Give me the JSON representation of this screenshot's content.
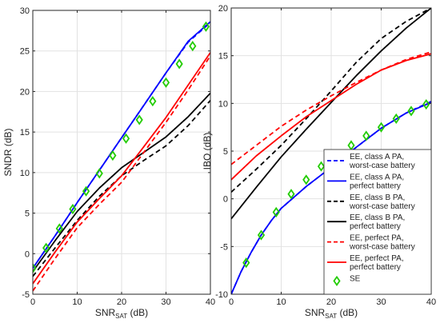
{
  "chart_data": [
    {
      "type": "line",
      "xlabel": {
        "main": "SNR",
        "sub": "SAT",
        "unit": " (dB)"
      },
      "ylabel": "SNDR (dB)",
      "xlim": [
        0,
        40
      ],
      "ylim": [
        -5,
        30
      ],
      "x_ticks": [
        0,
        10,
        20,
        30,
        40
      ],
      "y_ticks": [
        -5,
        0,
        5,
        10,
        15,
        20,
        25,
        30
      ],
      "grid": true,
      "series": [
        {
          "key": "ea_wc",
          "color": "#0000ff",
          "dash": "dashed",
          "x": [
            0,
            5,
            10,
            15,
            20,
            25,
            30,
            35,
            40
          ],
          "y": [
            -1.8,
            2.2,
            6.3,
            10.3,
            14.3,
            18.3,
            22.3,
            26.1,
            28.5
          ]
        },
        {
          "key": "ea_pb",
          "color": "#0000ff",
          "dash": "solid",
          "x": [
            0,
            5,
            10,
            15,
            20,
            25,
            30,
            35,
            40
          ],
          "y": [
            -1.8,
            2.2,
            6.3,
            10.3,
            14.3,
            18.3,
            22.3,
            26.2,
            28.6
          ]
        },
        {
          "key": "eb_wc",
          "color": "#000000",
          "dash": "dashed",
          "x": [
            0,
            5,
            10,
            15,
            20,
            25,
            30,
            35,
            40
          ],
          "y": [
            -2.8,
            0.7,
            4.1,
            7.1,
            9.6,
            11.5,
            13.3,
            15.8,
            18.9
          ]
        },
        {
          "key": "eb_pb",
          "color": "#000000",
          "dash": "solid",
          "x": [
            0,
            5,
            10,
            15,
            20,
            25,
            30,
            35,
            40
          ],
          "y": [
            -2.2,
            1.6,
            5.2,
            8.1,
            10.6,
            12.5,
            14.4,
            16.9,
            19.8
          ]
        },
        {
          "key": "ep_wc",
          "color": "#ff0000",
          "dash": "dashed",
          "x": [
            0,
            5,
            10,
            15,
            20,
            25,
            30,
            35,
            40
          ],
          "y": [
            -4.6,
            -0.6,
            3.2,
            6.1,
            8.8,
            12.5,
            16.2,
            20.2,
            24.4
          ]
        },
        {
          "key": "ep_pb",
          "color": "#ff0000",
          "dash": "solid",
          "x": [
            0,
            5,
            10,
            15,
            20,
            25,
            30,
            35,
            40
          ],
          "y": [
            -3.7,
            0.2,
            3.9,
            6.8,
            9.6,
            13.2,
            16.8,
            20.8,
            24.8
          ]
        },
        {
          "key": "se",
          "color": "#22cc00",
          "marker": "diamond",
          "x": [
            0,
            3,
            6,
            9,
            12,
            15,
            18,
            21,
            24,
            27,
            30,
            33,
            36,
            39
          ],
          "y": [
            -1.8,
            0.7,
            3.1,
            5.5,
            7.7,
            9.9,
            12.1,
            14.2,
            16.5,
            18.8,
            21.1,
            23.4,
            25.6,
            28.0
          ]
        }
      ]
    },
    {
      "type": "line",
      "xlabel": {
        "main": "SNR",
        "sub": "SAT",
        "unit": " (dB)"
      },
      "ylabel": "IBO (dB)",
      "xlim": [
        0,
        40
      ],
      "ylim": [
        -10,
        20
      ],
      "x_ticks": [
        0,
        10,
        20,
        30,
        40
      ],
      "y_ticks": [
        -10,
        -5,
        0,
        5,
        10,
        15,
        20
      ],
      "grid": true,
      "series": [
        {
          "key": "ea_wc",
          "color": "#0000ff",
          "dash": "dashed",
          "x": [
            0,
            2,
            4,
            6,
            8,
            10,
            15,
            20,
            25,
            30,
            35,
            40
          ],
          "y": [
            -10,
            -7.6,
            -5.6,
            -3.8,
            -2.3,
            -1.0,
            1.3,
            3.3,
            5.4,
            7.4,
            9.0,
            10.2
          ]
        },
        {
          "key": "ea_pb",
          "color": "#0000ff",
          "dash": "solid",
          "x": [
            0,
            2,
            4,
            6,
            8,
            10,
            15,
            20,
            25,
            30,
            35,
            40
          ],
          "y": [
            -10,
            -7.6,
            -5.6,
            -3.8,
            -2.3,
            -1.0,
            1.3,
            3.3,
            5.4,
            7.4,
            9.0,
            10.1
          ]
        },
        {
          "key": "eb_wc",
          "color": "#000000",
          "dash": "dashed",
          "x": [
            0,
            5,
            10,
            15,
            20,
            25,
            30,
            35,
            40
          ],
          "y": [
            0.7,
            3.1,
            5.6,
            8.4,
            11.3,
            14.3,
            16.8,
            18.6,
            20.0
          ]
        },
        {
          "key": "eb_pb",
          "color": "#000000",
          "dash": "solid",
          "x": [
            0,
            5,
            10,
            15,
            20,
            25,
            30,
            35,
            40
          ],
          "y": [
            -2.1,
            1.2,
            4.4,
            7.3,
            10.1,
            12.9,
            15.5,
            17.9,
            20.0
          ]
        },
        {
          "key": "ep_wc",
          "color": "#ff0000",
          "dash": "dashed",
          "x": [
            0,
            5,
            10,
            15,
            20,
            25,
            30,
            35,
            40
          ],
          "y": [
            3.6,
            5.6,
            7.6,
            9.3,
            10.8,
            12.2,
            13.5,
            14.6,
            15.4
          ]
        },
        {
          "key": "ep_pb",
          "color": "#ff0000",
          "dash": "solid",
          "x": [
            0,
            5,
            10,
            15,
            20,
            25,
            30,
            35,
            40
          ],
          "y": [
            2.0,
            4.5,
            6.6,
            8.6,
            10.3,
            12.0,
            13.5,
            14.5,
            15.2
          ]
        },
        {
          "key": "se",
          "color": "#22cc00",
          "marker": "diamond",
          "x": [
            3,
            6,
            9,
            12,
            15,
            18,
            21,
            24,
            27,
            30,
            33,
            36,
            39
          ],
          "y": [
            -6.7,
            -3.8,
            -1.4,
            0.5,
            2.0,
            3.4,
            4.4,
            5.6,
            6.6,
            7.5,
            8.4,
            9.2,
            9.9
          ]
        }
      ],
      "legend": {
        "placement": "bottom-right",
        "entries": [
          {
            "key": "ea_wc",
            "line1": "EE, class A PA,",
            "line2": "worst-case battery"
          },
          {
            "key": "ea_pb",
            "line1": "EE, class A PA,",
            "line2": "perfect battery"
          },
          {
            "key": "eb_wc",
            "line1": "EE, class B PA,",
            "line2": "worst-case battery"
          },
          {
            "key": "eb_pb",
            "line1": "EE, class B PA,",
            "line2": "perfect battery"
          },
          {
            "key": "ep_wc",
            "line1": "EE, perfect PA,",
            "line2": "worst-case battery"
          },
          {
            "key": "ep_pb",
            "line1": "EE, perfect PA,",
            "line2": "perfect battery"
          },
          {
            "key": "se",
            "line1": "SE",
            "line2": ""
          }
        ]
      }
    }
  ]
}
